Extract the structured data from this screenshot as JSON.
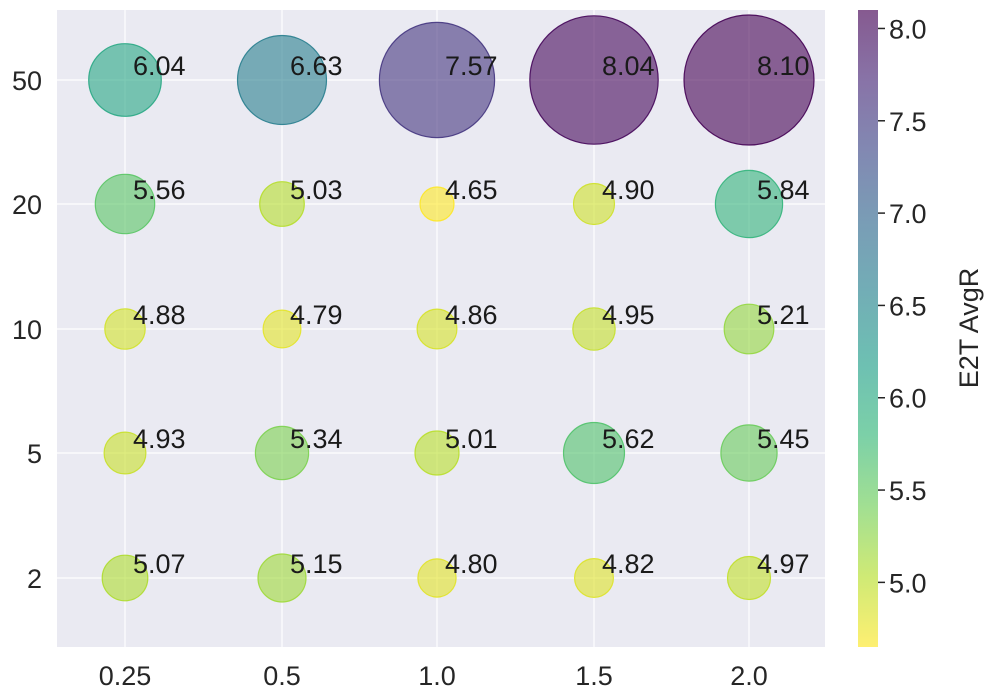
{
  "chart_data": {
    "type": "scatter",
    "subtype": "bubble-grid",
    "title": "",
    "xlabel": "",
    "ylabel": "",
    "x_categories": [
      "0.25",
      "0.5",
      "1.0",
      "1.5",
      "2.0"
    ],
    "y_categories": [
      "2",
      "5",
      "10",
      "20",
      "50"
    ],
    "points": [
      {
        "x": "0.25",
        "y": "50",
        "value": 6.04,
        "label": "6.04"
      },
      {
        "x": "0.5",
        "y": "50",
        "value": 6.63,
        "label": "6.63"
      },
      {
        "x": "1.0",
        "y": "50",
        "value": 7.57,
        "label": "7.57"
      },
      {
        "x": "1.5",
        "y": "50",
        "value": 8.04,
        "label": "8.04"
      },
      {
        "x": "2.0",
        "y": "50",
        "value": 8.1,
        "label": "8.10"
      },
      {
        "x": "0.25",
        "y": "20",
        "value": 5.56,
        "label": "5.56"
      },
      {
        "x": "0.5",
        "y": "20",
        "value": 5.03,
        "label": "5.03"
      },
      {
        "x": "1.0",
        "y": "20",
        "value": 4.65,
        "label": "4.65"
      },
      {
        "x": "1.5",
        "y": "20",
        "value": 4.9,
        "label": "4.90"
      },
      {
        "x": "2.0",
        "y": "20",
        "value": 5.84,
        "label": "5.84"
      },
      {
        "x": "0.25",
        "y": "10",
        "value": 4.88,
        "label": "4.88"
      },
      {
        "x": "0.5",
        "y": "10",
        "value": 4.79,
        "label": "4.79"
      },
      {
        "x": "1.0",
        "y": "10",
        "value": 4.86,
        "label": "4.86"
      },
      {
        "x": "1.5",
        "y": "10",
        "value": 4.95,
        "label": "4.95"
      },
      {
        "x": "2.0",
        "y": "10",
        "value": 5.21,
        "label": "5.21"
      },
      {
        "x": "0.25",
        "y": "5",
        "value": 4.93,
        "label": "4.93"
      },
      {
        "x": "0.5",
        "y": "5",
        "value": 5.34,
        "label": "5.34"
      },
      {
        "x": "1.0",
        "y": "5",
        "value": 5.01,
        "label": "5.01"
      },
      {
        "x": "1.5",
        "y": "5",
        "value": 5.62,
        "label": "5.62"
      },
      {
        "x": "2.0",
        "y": "5",
        "value": 5.45,
        "label": "5.45"
      },
      {
        "x": "0.25",
        "y": "2",
        "value": 5.07,
        "label": "5.07"
      },
      {
        "x": "0.5",
        "y": "2",
        "value": 5.15,
        "label": "5.15"
      },
      {
        "x": "1.0",
        "y": "2",
        "value": 4.8,
        "label": "4.80"
      },
      {
        "x": "1.5",
        "y": "2",
        "value": 4.82,
        "label": "4.82"
      },
      {
        "x": "2.0",
        "y": "2",
        "value": 4.97,
        "label": "4.97"
      }
    ],
    "size_encodes": "value",
    "colorbar": {
      "label": "E2T AvgR",
      "range": [
        4.65,
        8.1
      ],
      "ticks": [
        "5.0",
        "5.5",
        "6.0",
        "6.5",
        "7.0",
        "7.5",
        "8.0"
      ],
      "colormap": "viridis_r",
      "colormap_stops": [
        "#fde725",
        "#b5de2b",
        "#6ece58",
        "#35b779",
        "#1f9e89",
        "#26828e",
        "#31688e",
        "#3e4989",
        "#482878",
        "#440154"
      ]
    },
    "grid": true,
    "background_color": "#eaeaf2",
    "marker_alpha": 0.6
  }
}
